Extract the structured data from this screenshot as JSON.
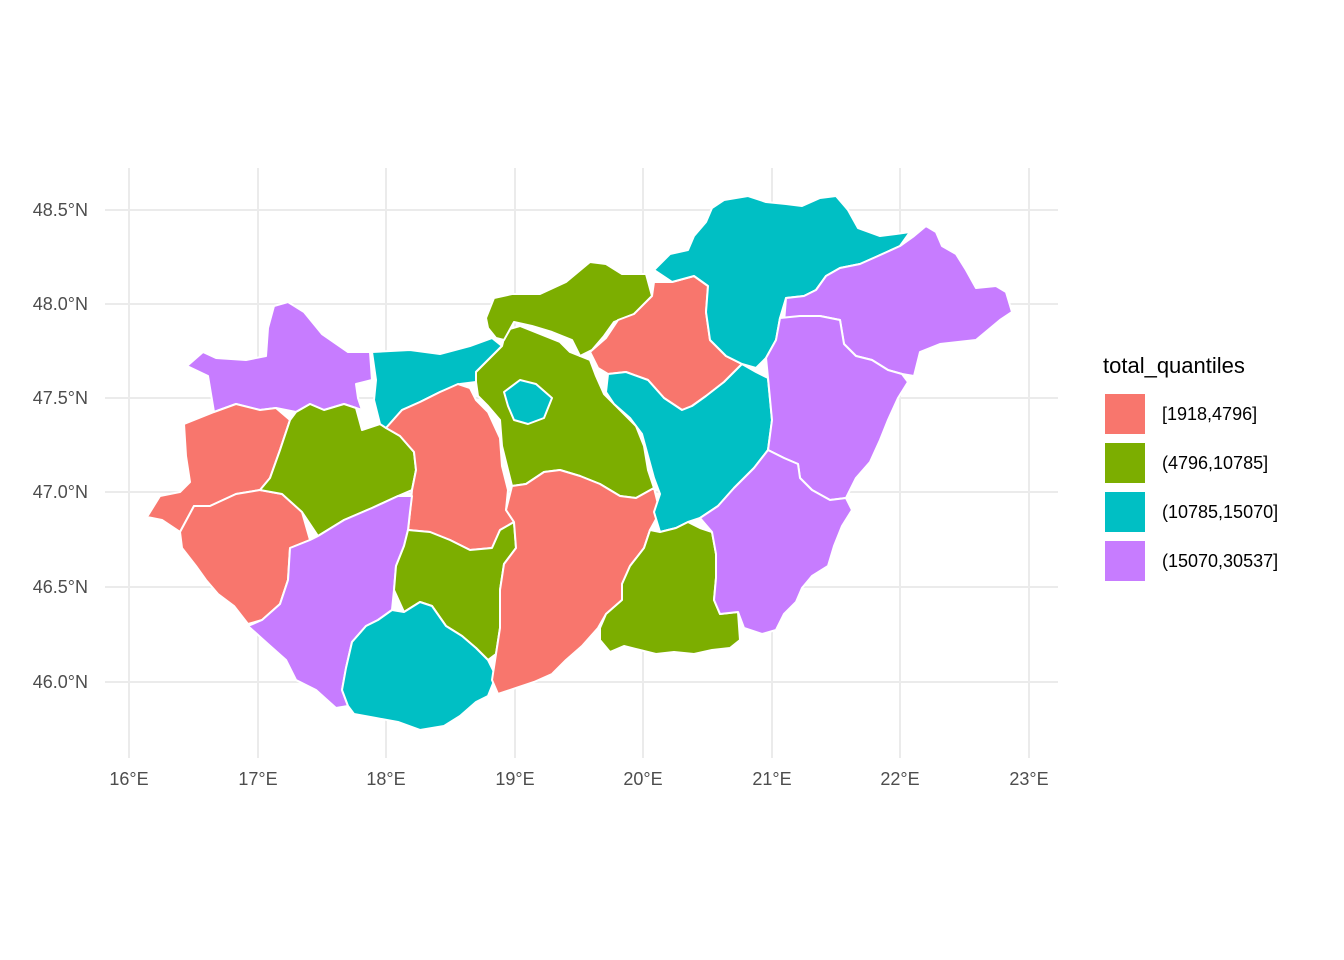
{
  "chart_data": {
    "type": "choropleth",
    "x_ticks": [
      "16°E",
      "17°E",
      "18°E",
      "19°E",
      "20°E",
      "21°E",
      "22°E",
      "23°E"
    ],
    "y_ticks": [
      "48.5°N",
      "48.0°N",
      "47.5°N",
      "47.0°N",
      "46.5°N",
      "46.0°N"
    ],
    "legend": {
      "title": "total_quantiles",
      "position": "right",
      "items": [
        {
          "label": "[1918,4796]",
          "color": "#F8766D"
        },
        {
          "label": "(4796,10785]",
          "color": "#7CAE00"
        },
        {
          "label": "(10785,15070]",
          "color": "#00BFC4"
        },
        {
          "label": "(15070,30537]",
          "color": "#C77CFF"
        }
      ]
    },
    "regions": [
      {
        "id": "gyor-moson-sopron",
        "class": "(15070,30537]"
      },
      {
        "id": "vas",
        "class": "[1918,4796]"
      },
      {
        "id": "zala",
        "class": "[1918,4796]"
      },
      {
        "id": "veszprem",
        "class": "(4796,10785]"
      },
      {
        "id": "komarom-esztergom",
        "class": "(10785,15070]"
      },
      {
        "id": "fejer",
        "class": "[1918,4796]"
      },
      {
        "id": "somogy",
        "class": "(15070,30537]"
      },
      {
        "id": "tolna",
        "class": "(4796,10785]"
      },
      {
        "id": "baranya",
        "class": "(10785,15070]"
      },
      {
        "id": "pest",
        "class": "(4796,10785]"
      },
      {
        "id": "budapest",
        "class": "(10785,15070]"
      },
      {
        "id": "nograd",
        "class": "(4796,10785]"
      },
      {
        "id": "heves",
        "class": "[1918,4796]"
      },
      {
        "id": "bacs-kiskun",
        "class": "[1918,4796]"
      },
      {
        "id": "jasz-nagykun-szolnok",
        "class": "(10785,15070]"
      },
      {
        "id": "csongrad",
        "class": "(4796,10785]"
      },
      {
        "id": "borsod-abauj-zemplen",
        "class": "(10785,15070]"
      },
      {
        "id": "szabolcs-szatmar-bereg",
        "class": "(15070,30537]"
      },
      {
        "id": "hajdu-bihar",
        "class": "(15070,30537]"
      },
      {
        "id": "bekes",
        "class": "(15070,30537]"
      }
    ]
  }
}
